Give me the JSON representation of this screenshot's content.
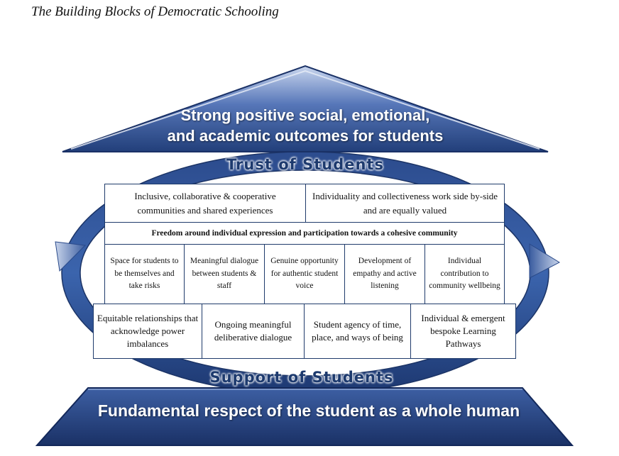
{
  "title": "The Building Blocks of Democratic Schooling",
  "roof": {
    "line1": "Strong positive social, emotional,",
    "line2": "and academic outcomes for students"
  },
  "trust_label": "Trust of Students",
  "support_label": "Support of Students",
  "base_label": "Fundamental respect of the student as a whole human",
  "blocks": {
    "row1": [
      "Inclusive, collaborative & cooperative communities and shared experiences",
      "Individuality and collectiveness work side by-side and are equally valued"
    ],
    "row2": "Freedom around individual expression and participation towards a cohesive community",
    "row3": [
      "Space for students to be themselves and take risks",
      "Meaningful dialogue between students & staff",
      "Genuine opportunity for authentic student voice",
      "Development of empathy and active listening",
      "Individual contribution to community wellbeing"
    ],
    "row4": [
      "Equitable relationships that acknowledge power imbalances",
      "Ongoing meaningful deliberative dialogue",
      "Student agency of time, place, and ways of being",
      "Individual & emergent bespoke Learning Pathways"
    ]
  },
  "colors": {
    "navy": "#1f3b6b",
    "blue": "#3b64ad",
    "light_blue": "#9fb3d8"
  }
}
